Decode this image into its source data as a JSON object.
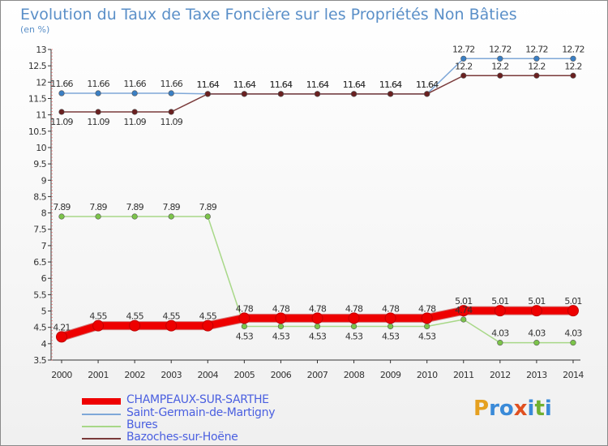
{
  "title": "Evolution du Taux de Taxe Foncière sur les Propriétés Non Bâties",
  "unit": "(en %)",
  "logo": {
    "parts": [
      "P",
      "r",
      "o",
      "x",
      "i",
      "t",
      "i"
    ],
    "colors": [
      "#e5a020",
      "#3a8ad8",
      "#3a8ad8",
      "#e05020",
      "#3a8ad8",
      "#70b030",
      "#3a8ad8"
    ]
  },
  "chart_data": {
    "type": "line",
    "x": [
      "2000",
      "2001",
      "2002",
      "2003",
      "2004",
      "2005",
      "2006",
      "2007",
      "2008",
      "2009",
      "2010",
      "2011",
      "2012",
      "2013",
      "2014"
    ],
    "ylim": [
      3.5,
      13
    ],
    "yticks": [
      "3.5",
      "4",
      "4.5",
      "5",
      "5.5",
      "6",
      "6.5",
      "7",
      "7.5",
      "8",
      "8.5",
      "9",
      "9.5",
      "10",
      "10.5",
      "11",
      "11.5",
      "12",
      "12.5",
      "13"
    ],
    "grid": false,
    "legend_position": "bottom",
    "series": [
      {
        "name": "Saint-Germain-de-Martigny",
        "color": "#7fa8d8",
        "marker": "#3a7fc4",
        "values": [
          11.66,
          11.66,
          11.66,
          11.66,
          11.64,
          11.64,
          11.64,
          11.64,
          11.64,
          11.64,
          11.64,
          12.72,
          12.72,
          12.72,
          12.72
        ],
        "labels": [
          "11.66",
          "11.66",
          "11.66",
          "11.66",
          "11.64",
          "11.64",
          "11.64",
          "11.64",
          "11.64",
          "11.64",
          "11.64",
          "12.72",
          "12.72",
          "12.72",
          "12.72"
        ]
      },
      {
        "name": "Bures",
        "color": "#a8d888",
        "marker": "#7cc44a",
        "values": [
          7.89,
          7.89,
          7.89,
          7.89,
          7.89,
          4.53,
          4.53,
          4.53,
          4.53,
          4.53,
          4.53,
          4.74,
          4.03,
          4.03,
          4.03
        ],
        "labels": [
          "7.89",
          "7.89",
          "7.89",
          "7.89",
          "7.89",
          "4.53",
          "4.53",
          "4.53",
          "4.53",
          "4.53",
          "4.53",
          "4.74",
          "4.03",
          "4.03",
          "4.03"
        ]
      },
      {
        "name": "Bazoches-sur-Hoëne",
        "color": "#7a3a3a",
        "marker": "#6a2020",
        "values": [
          11.09,
          11.09,
          11.09,
          11.09,
          11.64,
          11.64,
          11.64,
          11.64,
          11.64,
          11.64,
          11.64,
          12.2,
          12.2,
          12.2,
          12.2
        ],
        "labels": [
          "11.09",
          "11.09",
          "11.09",
          "11.09",
          "11.64",
          "11.64",
          "11.64",
          "11.64",
          "11.64",
          "11.64",
          "11.64",
          "12.2",
          "12.2",
          "12.2",
          "12.2"
        ]
      },
      {
        "name": "CHAMPEAUX-SUR-SARTHE",
        "color": "#ee0000",
        "marker": "#ee0000",
        "values": [
          4.21,
          4.55,
          4.55,
          4.55,
          4.55,
          4.78,
          4.78,
          4.78,
          4.78,
          4.78,
          4.78,
          5.01,
          5.01,
          5.01,
          5.01
        ],
        "labels": [
          "4.21",
          "4.55",
          "4.55",
          "4.55",
          "4.55",
          "4.78",
          "4.78",
          "4.78",
          "4.78",
          "4.78",
          "4.78",
          "5.01",
          "5.01",
          "5.01",
          "5.01"
        ]
      }
    ],
    "legend": [
      {
        "name": "CHAMPEAUX-SUR-SARTHE",
        "color": "#ee0000"
      },
      {
        "name": "Saint-Germain-de-Martigny",
        "color": "#7fa8d8"
      },
      {
        "name": "Bures",
        "color": "#a8d888"
      },
      {
        "name": "Bazoches-sur-Hoëne",
        "color": "#7a3a3a"
      }
    ]
  }
}
